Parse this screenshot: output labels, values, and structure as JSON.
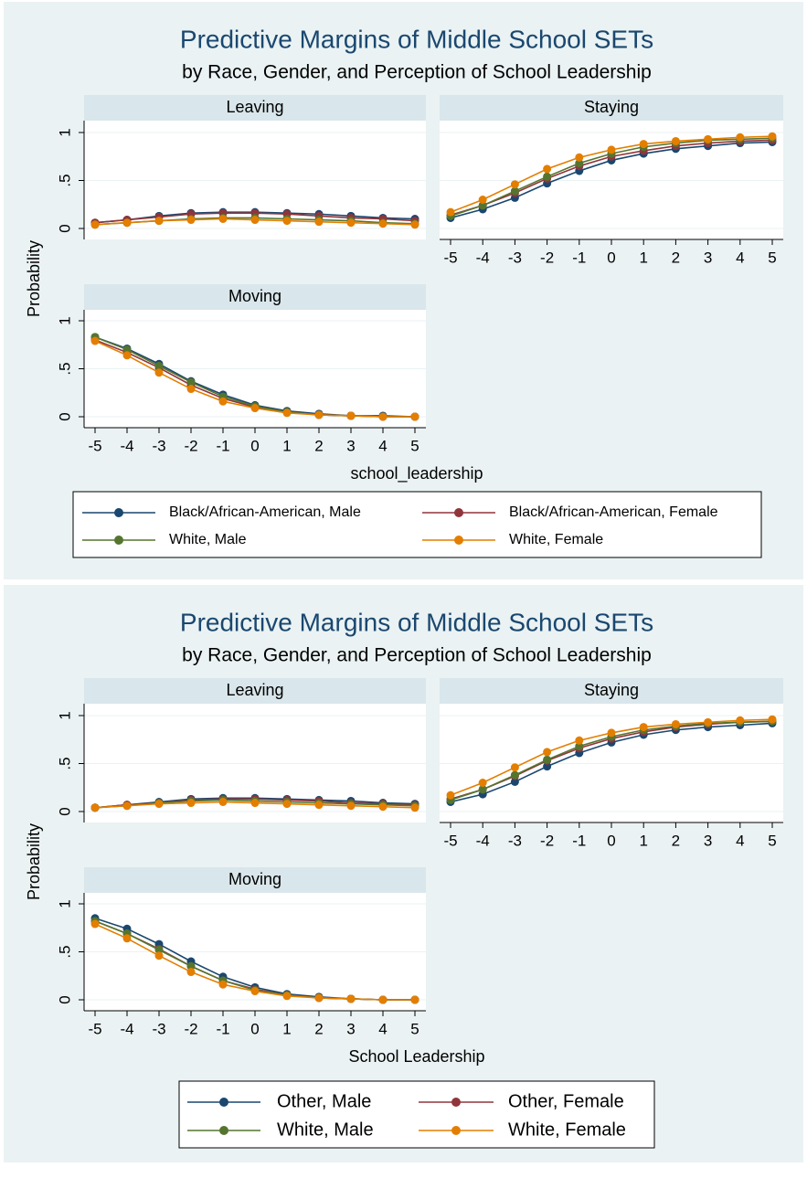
{
  "chart_data": [
    {
      "type": "line",
      "title": "Predictive Margins of Middle School SETs",
      "subtitle": "by Race, Gender, and Perception of School Leadership",
      "x_label": "school_leadership",
      "y_label": "Probability",
      "x": [
        -5,
        -4,
        -3,
        -2,
        -1,
        0,
        1,
        2,
        3,
        4,
        5
      ],
      "xlim": [
        -5,
        5
      ],
      "xticks": [
        -5,
        -4,
        -3,
        -2,
        -1,
        0,
        1,
        2,
        3,
        4,
        5
      ],
      "ylim": [
        0,
        1
      ],
      "yticks": [
        0,
        {
          "value": 0.5,
          "label": ".5"
        },
        1
      ],
      "grid": true,
      "series": [
        {
          "name": "Black/African-American, Male",
          "color": "#1a476f"
        },
        {
          "name": "Black/African-American, Female",
          "color": "#90353b"
        },
        {
          "name": "White, Male",
          "color": "#55752f"
        },
        {
          "name": "White, Female",
          "color": "#e37e00"
        }
      ],
      "panels": [
        {
          "title": "Leaving",
          "values": [
            [
              0.06,
              0.09,
              0.13,
              0.16,
              0.17,
              0.17,
              0.16,
              0.15,
              0.13,
              0.11,
              0.1
            ],
            [
              0.06,
              0.09,
              0.12,
              0.15,
              0.16,
              0.16,
              0.15,
              0.13,
              0.11,
              0.1,
              0.08
            ],
            [
              0.04,
              0.06,
              0.08,
              0.1,
              0.11,
              0.11,
              0.1,
              0.09,
              0.08,
              0.06,
              0.05
            ],
            [
              0.04,
              0.06,
              0.08,
              0.09,
              0.1,
              0.09,
              0.08,
              0.07,
              0.06,
              0.05,
              0.04
            ]
          ]
        },
        {
          "title": "Staying",
          "values": [
            [
              0.11,
              0.2,
              0.32,
              0.47,
              0.6,
              0.71,
              0.78,
              0.83,
              0.86,
              0.89,
              0.9
            ],
            [
              0.14,
              0.24,
              0.37,
              0.52,
              0.65,
              0.75,
              0.81,
              0.86,
              0.89,
              0.91,
              0.92
            ],
            [
              0.13,
              0.24,
              0.39,
              0.54,
              0.68,
              0.78,
              0.85,
              0.89,
              0.92,
              0.93,
              0.94
            ],
            [
              0.17,
              0.3,
              0.46,
              0.62,
              0.74,
              0.82,
              0.88,
              0.91,
              0.93,
              0.95,
              0.96
            ]
          ]
        },
        {
          "title": "Moving",
          "values": [
            [
              0.83,
              0.71,
              0.55,
              0.37,
              0.23,
              0.12,
              0.06,
              0.03,
              0.01,
              0.01,
              0.0
            ],
            [
              0.8,
              0.67,
              0.51,
              0.33,
              0.19,
              0.1,
              0.05,
              0.02,
              0.01,
              0.0,
              0.0
            ],
            [
              0.83,
              0.7,
              0.53,
              0.36,
              0.21,
              0.11,
              0.05,
              0.02,
              0.01,
              0.0,
              0.0
            ],
            [
              0.79,
              0.64,
              0.46,
              0.29,
              0.16,
              0.09,
              0.04,
              0.02,
              0.01,
              0.0,
              0.0
            ]
          ]
        }
      ]
    },
    {
      "type": "line",
      "title": "Predictive Margins of Middle School SETs",
      "subtitle": "by Race, Gender, and Perception of School Leadership",
      "x_label": "School Leadership",
      "y_label": "Probability",
      "x": [
        -5,
        -4,
        -3,
        -2,
        -1,
        0,
        1,
        2,
        3,
        4,
        5
      ],
      "xlim": [
        -5,
        5
      ],
      "xticks": [
        -5,
        -4,
        -3,
        -2,
        -1,
        0,
        1,
        2,
        3,
        4,
        5
      ],
      "ylim": [
        0,
        1
      ],
      "yticks": [
        0,
        {
          "value": 0.5,
          "label": ".5"
        },
        1
      ],
      "grid": true,
      "series": [
        {
          "name": "Other, Male",
          "color": "#1a476f"
        },
        {
          "name": "Other, Female",
          "color": "#90353b"
        },
        {
          "name": "White, Male",
          "color": "#55752f"
        },
        {
          "name": "White, Female",
          "color": "#e37e00"
        }
      ],
      "panels": [
        {
          "title": "Leaving",
          "values": [
            [
              0.04,
              0.07,
              0.1,
              0.13,
              0.14,
              0.14,
              0.13,
              0.12,
              0.11,
              0.09,
              0.08
            ],
            [
              0.04,
              0.07,
              0.09,
              0.12,
              0.13,
              0.13,
              0.12,
              0.11,
              0.09,
              0.08,
              0.07
            ],
            [
              0.04,
              0.06,
              0.09,
              0.11,
              0.12,
              0.11,
              0.1,
              0.09,
              0.08,
              0.07,
              0.06
            ],
            [
              0.04,
              0.06,
              0.08,
              0.09,
              0.1,
              0.09,
              0.08,
              0.07,
              0.06,
              0.05,
              0.04
            ]
          ]
        },
        {
          "title": "Staying",
          "values": [
            [
              0.1,
              0.18,
              0.31,
              0.47,
              0.61,
              0.72,
              0.8,
              0.85,
              0.88,
              0.9,
              0.92
            ],
            [
              0.13,
              0.23,
              0.37,
              0.53,
              0.66,
              0.76,
              0.83,
              0.88,
              0.91,
              0.93,
              0.94
            ],
            [
              0.12,
              0.23,
              0.38,
              0.54,
              0.68,
              0.78,
              0.85,
              0.89,
              0.92,
              0.93,
              0.94
            ],
            [
              0.17,
              0.3,
              0.46,
              0.62,
              0.74,
              0.82,
              0.88,
              0.91,
              0.93,
              0.95,
              0.96
            ]
          ]
        },
        {
          "title": "Moving",
          "values": [
            [
              0.85,
              0.74,
              0.58,
              0.4,
              0.24,
              0.13,
              0.06,
              0.03,
              0.01,
              0.0,
              0.0
            ],
            [
              0.82,
              0.69,
              0.53,
              0.35,
              0.2,
              0.11,
              0.05,
              0.02,
              0.01,
              0.0,
              0.0
            ],
            [
              0.82,
              0.69,
              0.52,
              0.35,
              0.2,
              0.1,
              0.05,
              0.02,
              0.01,
              0.0,
              0.0
            ],
            [
              0.79,
              0.64,
              0.46,
              0.29,
              0.16,
              0.09,
              0.04,
              0.02,
              0.01,
              0.0,
              0.0
            ]
          ]
        }
      ]
    }
  ]
}
